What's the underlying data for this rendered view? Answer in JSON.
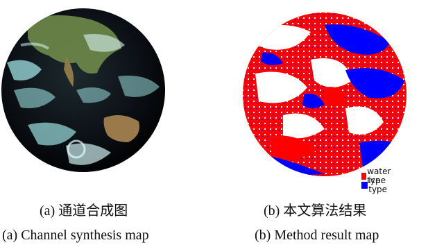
{
  "panel_a": {
    "caption_cn": "(a)  通道合成图",
    "caption_en": "(a) Channel synthesis map"
  },
  "panel_b": {
    "caption_cn": "(b)  本文算法结果",
    "caption_en": "(b) Method result map",
    "legend": [
      {
        "label": "water type",
        "color": "#ff0000"
      },
      {
        "label": "ice type",
        "color": "#0000ff"
      }
    ]
  },
  "colors": {
    "water": "#ff0000",
    "ice": "#0000ff",
    "ocean_dark": "#0b0f14",
    "cloud_cyan": "#a8f0f0",
    "land_green": "#6e8a4a",
    "land_brown": "#9a7a4a"
  }
}
